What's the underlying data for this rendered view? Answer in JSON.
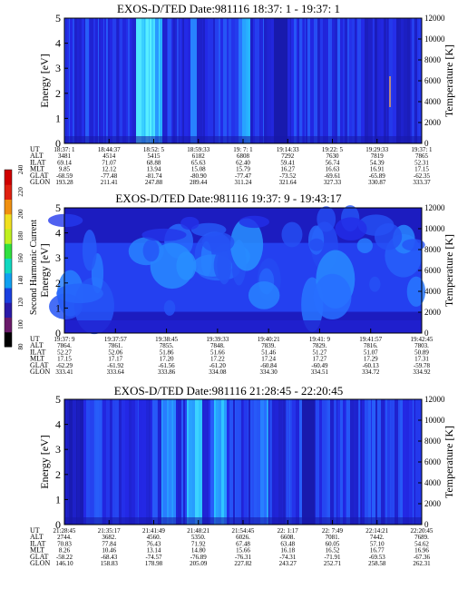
{
  "colorbar": {
    "label": "Second Harmonic Current",
    "ticks": [
      "80",
      "100",
      "120",
      "140",
      "160",
      "180",
      "200",
      "220",
      "240"
    ],
    "vmin": 80,
    "vmax": 240
  },
  "chart_data": [
    {
      "type": "heatmap",
      "title": "EXOS-D/TED   Date:981116  18:37: 1 - 19:37: 1",
      "ylabel": "Energy [eV]",
      "ylabel_right": "Temperature [K]",
      "ylim": [
        0,
        5
      ],
      "yticks": [
        "0",
        "1",
        "2",
        "3",
        "4",
        "5"
      ],
      "ylim_right": [
        0,
        12000
      ],
      "yticks_right": [
        "0",
        "2000",
        "4000",
        "6000",
        "8000",
        "10000",
        "12000"
      ],
      "rows": [
        {
          "label": "UT",
          "values": [
            "18:37: 1",
            "18:44:37",
            "18:52: 5",
            "18:59:33",
            "19: 7: 1",
            "19:14:33",
            "19:22: 5",
            "19:29:33",
            "19:37: 1"
          ]
        },
        {
          "label": "ALT",
          "values": [
            "3481",
            "4514",
            "5415",
            "6182",
            "6808",
            "7292",
            "7630",
            "7819",
            "7865"
          ]
        },
        {
          "label": "ILAT",
          "values": [
            "69.14",
            "71.07",
            "68.88",
            "65.63",
            "62.40",
            "59.41",
            "56.74",
            "54.39",
            "52.31"
          ]
        },
        {
          "label": "MLT",
          "values": [
            "9.85",
            "12.12",
            "13.94",
            "15.08",
            "15.79",
            "16.27",
            "16.63",
            "16.91",
            "17.15"
          ]
        },
        {
          "label": "GLAT",
          "values": [
            "-68.59",
            "-77.48",
            "-81.74",
            "-80.90",
            "-77.47",
            "-73.52",
            "-69.61",
            "-65.89",
            "-62.35"
          ]
        },
        {
          "label": "GLON",
          "values": [
            "193.28",
            "211.41",
            "247.88",
            "289.44",
            "311.24",
            "321.64",
            "327.33",
            "330.87",
            "333.37"
          ]
        }
      ]
    },
    {
      "type": "heatmap",
      "title": "EXOS-D/TED   Date:981116  19:37: 9 - 19:43:17",
      "ylabel": "Energy [eV]",
      "ylabel_right": "Temperature [K]",
      "ylim": [
        0,
        5
      ],
      "yticks": [
        "0",
        "1",
        "2",
        "3",
        "4",
        "5"
      ],
      "ylim_right": [
        0,
        12000
      ],
      "yticks_right": [
        "0",
        "2000",
        "4000",
        "6000",
        "8000",
        "10000",
        "12000"
      ],
      "rows": [
        {
          "label": "UT",
          "values": [
            "19:37: 9",
            "19:37:57",
            "19:38:45",
            "19:39:33",
            "19:40:21",
            "19:41: 9",
            "19:41:57",
            "19:42:45"
          ]
        },
        {
          "label": "ALT",
          "values": [
            "7864.",
            "7861.",
            "7855.",
            "7848.",
            "7839.",
            "7829.",
            "7816.",
            "7803."
          ]
        },
        {
          "label": "ILAT",
          "values": [
            "52.27",
            "52.06",
            "51.86",
            "51.66",
            "51.46",
            "51.27",
            "51.07",
            "50.89"
          ]
        },
        {
          "label": "MLT",
          "values": [
            "17.15",
            "17.17",
            "17.20",
            "17.22",
            "17.24",
            "17.27",
            "17.29",
            "17.31"
          ]
        },
        {
          "label": "GLAT",
          "values": [
            "-62.29",
            "-61.92",
            "-61.56",
            "-61.20",
            "-60.84",
            "-60.49",
            "-60.13",
            "-59.78"
          ]
        },
        {
          "label": "GLON",
          "values": [
            "333.41",
            "333.64",
            "333.86",
            "334.08",
            "334.30",
            "334.51",
            "334.72",
            "334.92"
          ]
        }
      ]
    },
    {
      "type": "heatmap",
      "title": "EXOS-D/TED   Date:981116  21:28:45 - 22:20:45",
      "ylabel": "Energy [eV]",
      "ylabel_right": "Temperature [K]",
      "ylim": [
        0,
        5
      ],
      "yticks": [
        "0",
        "1",
        "2",
        "3",
        "4",
        "5"
      ],
      "ylim_right": [
        0,
        12000
      ],
      "yticks_right": [
        "0",
        "2000",
        "4000",
        "6000",
        "8000",
        "10000",
        "12000"
      ],
      "rows": [
        {
          "label": "UT",
          "values": [
            "21:28:45",
            "21:35:17",
            "21:41:49",
            "21:48:21",
            "21:54:45",
            "22: 1:17",
            "22: 7:49",
            "22:14:21",
            "22:20:45"
          ]
        },
        {
          "label": "ALT",
          "values": [
            "2744.",
            "3682.",
            "4560.",
            "5350.",
            "6026.",
            "6608.",
            "7081.",
            "7442.",
            "7689."
          ]
        },
        {
          "label": "ILAT",
          "values": [
            "70.83",
            "77.84",
            "76.43",
            "71.92",
            "67.48",
            "63.48",
            "60.05",
            "57.10",
            "54.62"
          ]
        },
        {
          "label": "MLT",
          "values": [
            "8.26",
            "10.46",
            "13.14",
            "14.80",
            "15.66",
            "16.18",
            "16.52",
            "16.77",
            "16.96"
          ]
        },
        {
          "label": "GLAT",
          "values": [
            "-58.22",
            "-68.43",
            "-74.57",
            "-76.89",
            "-76.31",
            "-74.31",
            "-71.91",
            "-69.53",
            "-67.36"
          ]
        },
        {
          "label": "GLON",
          "values": [
            "146.10",
            "158.83",
            "178.98",
            "205.09",
            "227.82",
            "243.27",
            "252.71",
            "258.58",
            "262.31"
          ]
        }
      ]
    }
  ]
}
